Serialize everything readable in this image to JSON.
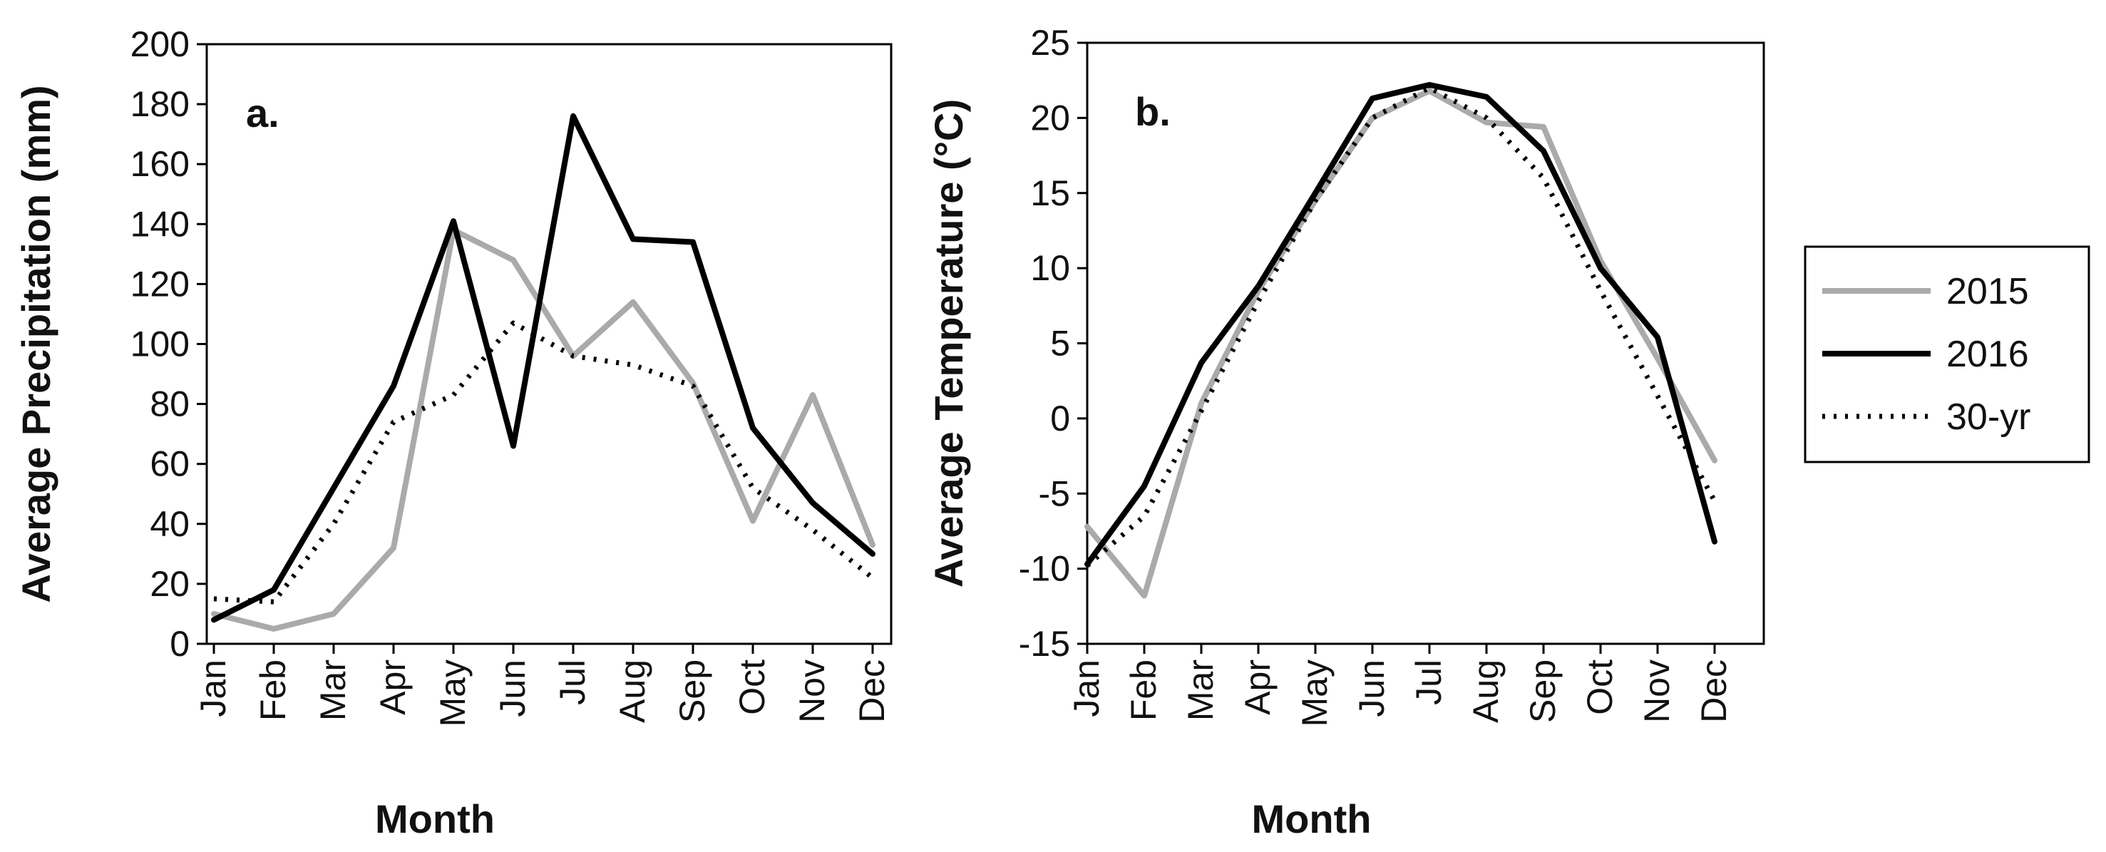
{
  "chart_data": [
    {
      "type": "line",
      "panel_label": "a.",
      "title": "",
      "xlabel": "Month",
      "ylabel": "Average Precipitation (mm)",
      "categories": [
        "Jan",
        "Feb",
        "Mar",
        "Apr",
        "May",
        "Jun",
        "Jul",
        "Aug",
        "Sep",
        "Oct",
        "Nov",
        "Dec"
      ],
      "ylim": [
        0,
        200
      ],
      "yticks": [
        0,
        20,
        40,
        60,
        80,
        100,
        120,
        140,
        160,
        180,
        200
      ],
      "ytick_labels": [
        "0",
        "20",
        "40",
        "60",
        "80",
        "100",
        "120",
        "140",
        "160",
        "180",
        "200"
      ],
      "grid": false,
      "series": [
        {
          "name": "2015",
          "color": "#aaaaaa",
          "style": "solid",
          "values": [
            10,
            5,
            10,
            32,
            138,
            128,
            96,
            114,
            87,
            41,
            83,
            33
          ]
        },
        {
          "name": "2016",
          "color": "#000000",
          "style": "solid",
          "values": [
            8,
            18,
            52,
            86,
            141,
            66,
            176,
            135,
            134,
            72,
            47,
            30
          ]
        },
        {
          "name": "30-yr",
          "color": "#000000",
          "style": "dotted",
          "values": [
            15,
            14,
            40,
            74,
            83,
            107,
            96,
            93,
            86,
            52,
            38,
            22
          ]
        }
      ]
    },
    {
      "type": "line",
      "panel_label": "b.",
      "title": "",
      "xlabel": "Month",
      "ylabel": "Average Temperature (°C)",
      "categories": [
        "Jan",
        "Feb",
        "Mar",
        "Apr",
        "May",
        "Jun",
        "Jul",
        "Aug",
        "Sep",
        "Oct",
        "Nov",
        "Dec"
      ],
      "ylim": [
        -15,
        25
      ],
      "yticks": [
        -15,
        -10,
        -5,
        0,
        5,
        10,
        15,
        20,
        25
      ],
      "ytick_labels": [
        "-15",
        "-10",
        "-5",
        "0",
        "5",
        "10",
        "15",
        "20",
        "25"
      ],
      "grid": false,
      "series": [
        {
          "name": "2015",
          "color": "#aaaaaa",
          "style": "solid",
          "values": [
            -7.2,
            -11.8,
            1.0,
            8.5,
            14.5,
            20.0,
            21.8,
            19.7,
            19.4,
            10.5,
            4.0,
            -2.8
          ]
        },
        {
          "name": "2016",
          "color": "#000000",
          "style": "solid",
          "values": [
            -9.7,
            -4.5,
            3.7,
            8.8,
            15.0,
            21.3,
            22.2,
            21.4,
            17.8,
            10.0,
            5.4,
            -8.2
          ]
        },
        {
          "name": "30-yr",
          "color": "#000000",
          "style": "dotted",
          "values": [
            -9.8,
            -6.5,
            0.5,
            7.8,
            14.5,
            20.0,
            22.0,
            20.0,
            16.0,
            8.5,
            1.5,
            -5.5
          ]
        }
      ]
    }
  ],
  "legend": {
    "placement": "right",
    "entries": [
      {
        "label": "2015",
        "color": "#aaaaaa",
        "style": "solid"
      },
      {
        "label": "2016",
        "color": "#000000",
        "style": "solid"
      },
      {
        "label": "30-yr",
        "color": "#000000",
        "style": "dotted"
      }
    ]
  }
}
